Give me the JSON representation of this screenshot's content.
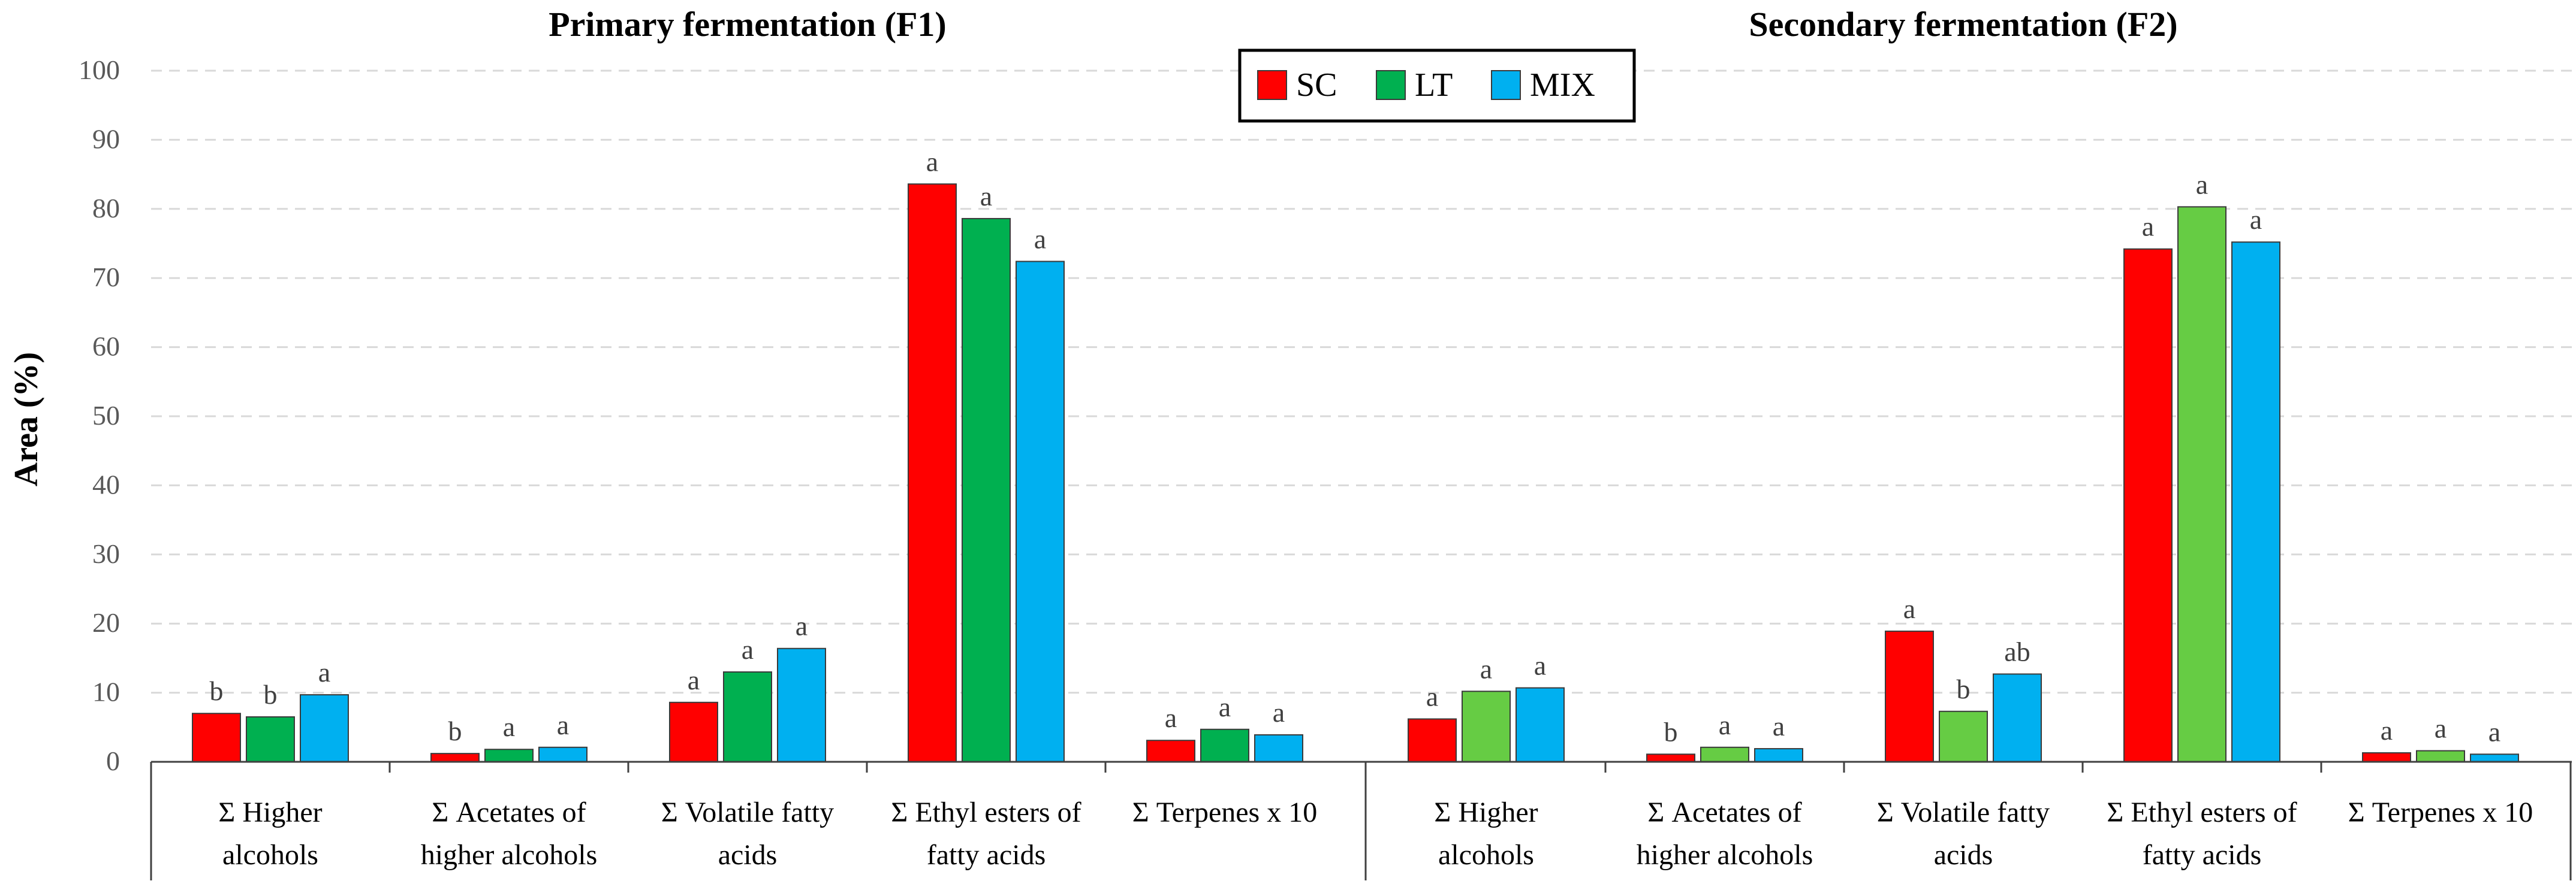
{
  "chart_data": {
    "type": "bar",
    "ylabel": "Area (%)",
    "ylim": [
      0,
      100
    ],
    "yticks": [
      0,
      10,
      20,
      30,
      40,
      50,
      60,
      70,
      80,
      90,
      100
    ],
    "grid": true,
    "legend_position": "top-center",
    "legend": [
      {
        "name": "SC",
        "color": "#ff0000"
      },
      {
        "name": "LT",
        "color": "#00b050"
      },
      {
        "name": "MIX",
        "color": "#00b0f0"
      }
    ],
    "lt_color_secondary": "#66cc44",
    "categories": [
      [
        "Σ Higher",
        "alcohols"
      ],
      [
        "Σ Acetates of",
        "higher alcohols"
      ],
      [
        "Σ Volatile fatty",
        "acids"
      ],
      [
        "Σ Ethyl esters of",
        "fatty acids"
      ],
      [
        "Σ Terpenes x 10",
        ""
      ]
    ],
    "panels": [
      {
        "title": "Primary fermentation (F1)",
        "series": [
          {
            "name": "SC",
            "values": [
              7.0,
              1.2,
              8.6,
              83.6,
              3.1
            ],
            "letters": [
              "b",
              "b",
              "a",
              "a",
              "a"
            ]
          },
          {
            "name": "LT",
            "values": [
              6.5,
              1.8,
              13.0,
              78.6,
              4.7
            ],
            "letters": [
              "b",
              "a",
              "a",
              "a",
              "a"
            ]
          },
          {
            "name": "MIX",
            "values": [
              9.7,
              2.1,
              16.4,
              72.4,
              3.9
            ],
            "letters": [
              "a",
              "a",
              "a",
              "a",
              "a"
            ]
          }
        ]
      },
      {
        "title": "Secondary fermentation (F2)",
        "series": [
          {
            "name": "SC",
            "values": [
              6.2,
              1.1,
              18.9,
              74.2,
              1.3
            ],
            "letters": [
              "a",
              "b",
              "a",
              "a",
              "a"
            ]
          },
          {
            "name": "LT",
            "values": [
              10.2,
              2.1,
              7.3,
              80.3,
              1.6
            ],
            "letters": [
              "a",
              "a",
              "b",
              "a",
              "a"
            ]
          },
          {
            "name": "MIX",
            "values": [
              10.7,
              1.9,
              12.7,
              75.2,
              1.1
            ],
            "letters": [
              "a",
              "a",
              "ab",
              "a",
              "a"
            ]
          }
        ]
      }
    ]
  }
}
